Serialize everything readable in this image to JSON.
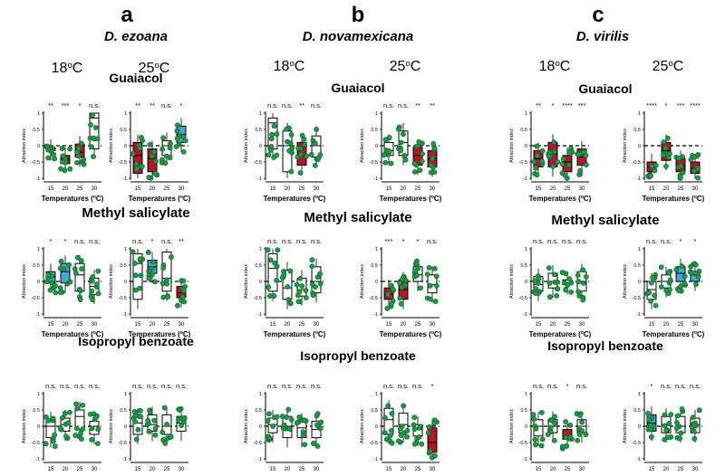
{
  "figure": {
    "panel_letters": [
      "a",
      "b",
      "c"
    ],
    "species": [
      "D. ezoana",
      "D. novamexicana",
      "D. virilis"
    ],
    "temp_headers": [
      "18oC",
      "25oC"
    ],
    "odors": [
      "Guaiacol",
      "Methyl salicylate",
      "Isopropyl benzoate"
    ],
    "ylabel": "Attraction index",
    "xlabel": "Temperatures (oC)",
    "xticks": [
      "15",
      "20",
      "25",
      "30"
    ],
    "yticks": [
      "1",
      "0.5",
      "0",
      "-0.5",
      "-1"
    ],
    "colors": {
      "attraction": "#4aa6d6",
      "aversion": "#b3172b",
      "neutral": "#ffffff",
      "dots": "#1f9a47",
      "dot_edge": "#0d5a25"
    }
  },
  "chart_data": [
    {
      "type": "box",
      "species": "D. ezoana",
      "odor": "Guaiacol",
      "rearing_temp": "18oC",
      "categories": [
        "15",
        "20",
        "25",
        "30"
      ],
      "medians": [
        -0.1,
        -0.42,
        -0.2,
        0.85
      ],
      "q1": [
        -0.15,
        -0.55,
        -0.35,
        -0.1
      ],
      "q3": [
        -0.05,
        -0.3,
        0.05,
        1.0
      ],
      "significance": [
        "**",
        "***",
        "*",
        "n.s."
      ],
      "fill": [
        "white",
        "red",
        "red",
        "white"
      ],
      "ylim": [
        -1,
        1
      ]
    },
    {
      "type": "box",
      "species": "D. ezoana",
      "odor": "Guaiacol",
      "rearing_temp": "25oC",
      "categories": [
        "15",
        "20",
        "25",
        "30"
      ],
      "medians": [
        -0.3,
        -0.4,
        0.0,
        0.35
      ],
      "q1": [
        -0.85,
        -0.8,
        -0.3,
        0.1
      ],
      "q3": [
        0.1,
        -0.1,
        0.15,
        0.6
      ],
      "significance": [
        "**",
        "**",
        "n.s.",
        "*"
      ],
      "fill": [
        "red",
        "red",
        "white",
        "blue"
      ],
      "ylim": [
        -1,
        1
      ]
    },
    {
      "type": "box",
      "species": "D. novamexicana",
      "odor": "Guaiacol",
      "rearing_temp": "18oC",
      "categories": [
        "15",
        "20",
        "25",
        "30"
      ],
      "medians": [
        0.7,
        0.0,
        -0.3,
        0.0
      ],
      "q1": [
        -0.1,
        -0.8,
        -0.6,
        -0.35
      ],
      "q3": [
        0.85,
        0.45,
        0.1,
        0.3
      ],
      "significance": [
        "n.s.",
        "n.s.",
        "**",
        "n.s."
      ],
      "fill": [
        "white",
        "white",
        "red",
        "white"
      ],
      "ylim": [
        -1,
        1
      ]
    },
    {
      "type": "box",
      "species": "D. novamexicana",
      "odor": "Guaiacol",
      "rearing_temp": "25oC",
      "categories": [
        "15",
        "20",
        "25",
        "30"
      ],
      "medians": [
        -0.15,
        0.1,
        -0.3,
        -0.4
      ],
      "q1": [
        -0.3,
        -0.3,
        -0.6,
        -0.65
      ],
      "q3": [
        0.1,
        0.45,
        -0.05,
        -0.15
      ],
      "significance": [
        "n.s.",
        "n.s.",
        "**",
        "**"
      ],
      "fill": [
        "white",
        "white",
        "red",
        "red"
      ],
      "ylim": [
        -1,
        1
      ]
    },
    {
      "type": "box",
      "species": "D. virilis",
      "odor": "Guaiacol",
      "rearing_temp": "18oC",
      "categories": [
        "15",
        "20",
        "25",
        "30"
      ],
      "medians": [
        -0.4,
        -0.25,
        -0.5,
        -0.35
      ],
      "q1": [
        -0.65,
        -0.65,
        -0.8,
        -0.6
      ],
      "q3": [
        -0.15,
        0.1,
        -0.3,
        -0.1
      ],
      "significance": [
        "**",
        "*",
        "****",
        "***"
      ],
      "fill": [
        "red",
        "red",
        "red",
        "red"
      ],
      "ylim": [
        -1,
        1
      ]
    },
    {
      "type": "box",
      "species": "D. virilis",
      "odor": "Guaiacol",
      "rearing_temp": "25oC",
      "categories": [
        "15",
        "20",
        "25",
        "30"
      ],
      "medians": [
        -0.65,
        -0.15,
        -0.6,
        -0.7
      ],
      "q1": [
        -0.8,
        -0.45,
        -0.8,
        -0.85
      ],
      "q3": [
        -0.5,
        0.1,
        -0.4,
        -0.5
      ],
      "significance": [
        "****",
        "*",
        "***",
        "****"
      ],
      "fill": [
        "red",
        "red",
        "red",
        "red"
      ],
      "ylim": [
        -1,
        1
      ]
    },
    {
      "type": "box",
      "species": "D. ezoana",
      "odor": "Methyl salicylate",
      "rearing_temp": "18oC",
      "categories": [
        "15",
        "20",
        "25",
        "30"
      ],
      "medians": [
        0.15,
        0.3,
        0.2,
        -0.15
      ],
      "q1": [
        -0.05,
        -0.05,
        -0.3,
        -0.4
      ],
      "q3": [
        0.3,
        0.55,
        0.55,
        0.1
      ],
      "significance": [
        "*",
        "*",
        "n.s.",
        "n.s."
      ],
      "fill": [
        "blue",
        "blue",
        "white",
        "white"
      ],
      "ylim": [
        -1,
        1
      ]
    },
    {
      "type": "box",
      "species": "D. ezoana",
      "odor": "Methyl salicylate",
      "rearing_temp": "25oC",
      "categories": [
        "15",
        "20",
        "25",
        "30"
      ],
      "medians": [
        0.55,
        0.45,
        0.1,
        -0.35
      ],
      "q1": [
        -0.55,
        0.25,
        -0.3,
        -0.5
      ],
      "q3": [
        0.85,
        0.65,
        0.9,
        -0.15
      ],
      "significance": [
        "n.s.",
        "*",
        "n.s.",
        "**"
      ],
      "fill": [
        "white",
        "blue",
        "white",
        "red"
      ],
      "ylim": [
        -1,
        1
      ]
    },
    {
      "type": "box",
      "species": "D. novamexicana",
      "odor": "Methyl salicylate",
      "rearing_temp": "18oC",
      "categories": [
        "15",
        "20",
        "25",
        "30"
      ],
      "medians": [
        0.4,
        -0.2,
        -0.25,
        0.0
      ],
      "q1": [
        -0.3,
        -0.55,
        -0.45,
        -0.35
      ],
      "q3": [
        0.85,
        0.35,
        0.1,
        0.45
      ],
      "significance": [
        "n.s.",
        "n.s.",
        "n.s.",
        "n.s."
      ],
      "fill": [
        "white",
        "white",
        "white",
        "white"
      ],
      "ylim": [
        -1,
        1
      ]
    },
    {
      "type": "box",
      "species": "D. novamexicana",
      "odor": "Methyl salicylate",
      "rearing_temp": "25oC",
      "categories": [
        "15",
        "20",
        "25",
        "30"
      ],
      "medians": [
        -0.4,
        -0.25,
        0.2,
        -0.1
      ],
      "q1": [
        -0.55,
        -0.55,
        0.0,
        -0.35
      ],
      "q3": [
        -0.2,
        0.05,
        0.45,
        0.2
      ],
      "significance": [
        "***",
        "*",
        "*",
        "n.s."
      ],
      "fill": [
        "red",
        "red",
        "white",
        "white"
      ],
      "ylim": [
        -1,
        1
      ]
    },
    {
      "type": "box",
      "species": "D. virilis",
      "odor": "Methyl salicylate",
      "rearing_temp": "18oC",
      "categories": [
        "15",
        "20",
        "25",
        "30"
      ],
      "medians": [
        -0.1,
        0.0,
        -0.05,
        0.0
      ],
      "q1": [
        -0.3,
        -0.2,
        -0.1,
        -0.3
      ],
      "q3": [
        0.15,
        0.25,
        0.05,
        0.3
      ],
      "significance": [
        "n.s.",
        "n.s.",
        "n.s.",
        "n.s."
      ],
      "fill": [
        "white",
        "white",
        "white",
        "white"
      ],
      "ylim": [
        -1,
        1
      ]
    },
    {
      "type": "box",
      "species": "D. virilis",
      "odor": "Methyl salicylate",
      "rearing_temp": "25oC",
      "categories": [
        "15",
        "20",
        "25",
        "30"
      ],
      "medians": [
        -0.25,
        0.0,
        0.25,
        0.2
      ],
      "q1": [
        -0.55,
        -0.2,
        0.0,
        0.0
      ],
      "q3": [
        0.0,
        0.2,
        0.45,
        0.3
      ],
      "significance": [
        "n.s.",
        "n.s.",
        "*",
        "*"
      ],
      "fill": [
        "white",
        "white",
        "blue",
        "blue"
      ],
      "ylim": [
        -1,
        1
      ]
    },
    {
      "type": "box",
      "species": "D. ezoana",
      "odor": "Isopropyl benzoate",
      "rearing_temp": "18oC",
      "categories": [
        "15",
        "20",
        "25",
        "30"
      ],
      "medians": [
        0.0,
        0.05,
        0.3,
        0.0
      ],
      "q1": [
        -0.35,
        -0.15,
        -0.1,
        -0.25
      ],
      "q3": [
        0.2,
        0.25,
        0.5,
        0.15
      ],
      "significance": [
        "n.s.",
        "n.s.",
        "n.s.",
        "n.s."
      ],
      "fill": [
        "white",
        "white",
        "white",
        "white"
      ],
      "ylim": [
        -1,
        1
      ]
    },
    {
      "type": "box",
      "species": "D. ezoana",
      "odor": "Isopropyl benzoate",
      "rearing_temp": "25oC",
      "categories": [
        "15",
        "20",
        "25",
        "30"
      ],
      "medians": [
        0.1,
        0.05,
        0.0,
        0.1
      ],
      "q1": [
        -0.25,
        -0.15,
        -0.25,
        -0.15
      ],
      "q3": [
        0.3,
        0.35,
        0.35,
        0.3
      ],
      "significance": [
        "n.s.",
        "n.s.",
        "n.s.",
        "n.s."
      ],
      "fill": [
        "white",
        "white",
        "white",
        "white"
      ],
      "ylim": [
        -1,
        1
      ]
    },
    {
      "type": "box",
      "species": "D. novamexicana",
      "odor": "Isopropyl benzoate",
      "rearing_temp": "18oC",
      "categories": [
        "15",
        "20",
        "25",
        "30"
      ],
      "medians": [
        0.05,
        0.0,
        -0.05,
        -0.1
      ],
      "q1": [
        -0.2,
        -0.35,
        -0.35,
        -0.35
      ],
      "q3": [
        0.25,
        0.3,
        0.15,
        0.15
      ],
      "significance": [
        "n.s.",
        "n.s.",
        "n.s.",
        "n.s."
      ],
      "fill": [
        "white",
        "white",
        "white",
        "white"
      ],
      "ylim": [
        -1,
        1
      ]
    },
    {
      "type": "box",
      "species": "D. novamexicana",
      "odor": "Isopropyl benzoate",
      "rearing_temp": "25oC",
      "categories": [
        "15",
        "20",
        "25",
        "30"
      ],
      "medians": [
        0.2,
        0.05,
        -0.1,
        -0.5
      ],
      "q1": [
        -0.25,
        -0.2,
        -0.3,
        -0.8
      ],
      "q3": [
        0.55,
        0.4,
        0.05,
        -0.05
      ],
      "significance": [
        "n.s.",
        "n.s.",
        "n.s.",
        "*"
      ],
      "fill": [
        "white",
        "white",
        "white",
        "red"
      ],
      "ylim": [
        -1,
        1
      ]
    },
    {
      "type": "box",
      "species": "D. virilis",
      "odor": "Isopropyl benzoate",
      "rearing_temp": "18oC",
      "categories": [
        "15",
        "20",
        "25",
        "30"
      ],
      "medians": [
        0.0,
        0.0,
        -0.3,
        0.0
      ],
      "q1": [
        -0.3,
        -0.2,
        -0.4,
        -0.2
      ],
      "q3": [
        0.2,
        0.2,
        -0.1,
        0.2
      ],
      "significance": [
        "n.s.",
        "n.s.",
        "*",
        "n.s."
      ],
      "fill": [
        "white",
        "white",
        "red",
        "white"
      ],
      "ylim": [
        -1,
        1
      ]
    },
    {
      "type": "box",
      "species": "D. virilis",
      "odor": "Isopropyl benzoate",
      "rearing_temp": "25oC",
      "categories": [
        "15",
        "20",
        "25",
        "30"
      ],
      "medians": [
        0.1,
        0.05,
        0.0,
        0.05
      ],
      "q1": [
        -0.15,
        -0.2,
        -0.2,
        -0.2
      ],
      "q3": [
        0.35,
        0.3,
        0.3,
        0.25
      ],
      "significance": [
        "*",
        "n.s.",
        "n.s.",
        "n.s."
      ],
      "fill": [
        "blue",
        "white",
        "white",
        "white"
      ],
      "ylim": [
        -1,
        1
      ]
    }
  ]
}
